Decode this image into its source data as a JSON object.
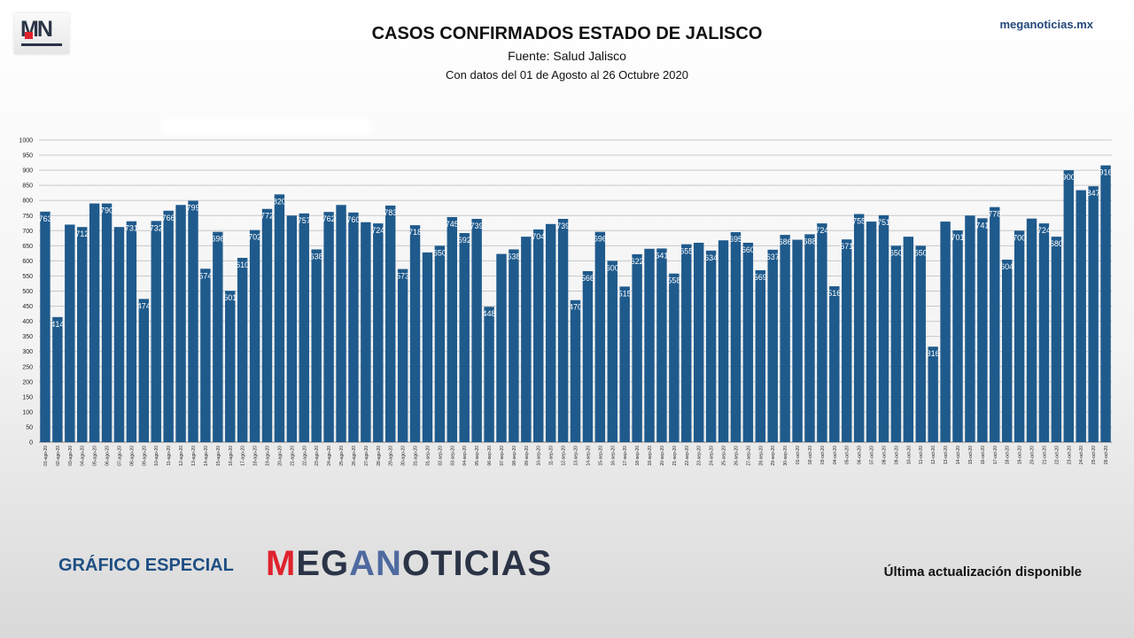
{
  "header": {
    "logo_text": "MN",
    "site": "meganoticias.mx"
  },
  "footer": {
    "left_text": "GRÁFICO ESPECIAL",
    "brand_text": "MEGANOTICIAS",
    "right_text": "Última actualización disponible"
  },
  "colors": {
    "bar": "#1f5a8c",
    "grid": "#c8c8c8",
    "brand_dark": "#2b3447",
    "brand_red": "#e0222e",
    "brand_blue": "#1e4f83"
  },
  "chart_data": {
    "type": "bar",
    "title": "CASOS CONFIRMADOS ESTADO DE JALISCO",
    "subtitle": "Fuente: Salud Jalisco",
    "date_range_text": "Con datos del 01 de Agosto al 26 Octubre 2020",
    "xlabel": "",
    "ylabel": "",
    "ylim": [
      0,
      1000
    ],
    "yticks": [
      0,
      50,
      100,
      150,
      200,
      250,
      300,
      350,
      400,
      450,
      500,
      550,
      600,
      650,
      700,
      750,
      800,
      850,
      900,
      950,
      1000
    ],
    "grid": true,
    "legend": "none",
    "categories": [
      "01-ago-20",
      "02-ago-20",
      "03-ago-20",
      "04-ago-20",
      "05-ago-20",
      "06-ago-20",
      "07-ago-20",
      "08-ago-20",
      "09-ago-20",
      "10-ago-20",
      "11-ago-20",
      "12-ago-20",
      "13-ago-20",
      "14-ago-20",
      "15-ago-20",
      "16-ago-20",
      "17-ago-20",
      "18-ago-20",
      "19-ago-20",
      "20-ago-20",
      "21-ago-20",
      "22-ago-20",
      "23-ago-20",
      "24-ago-20",
      "25-ago-20",
      "26-ago-20",
      "27-ago-20",
      "28-ago-20",
      "29-ago-20",
      "30-ago-20",
      "31-ago-20",
      "01-sep-20",
      "02-sep-20",
      "03-sep-20",
      "04-sep-20",
      "05-sep-20",
      "06-sep-20",
      "07-sep-20",
      "08-sep-20",
      "09-sep-20",
      "10-sep-20",
      "11-sep-20",
      "12-sep-20",
      "13-sep-20",
      "14-sep-20",
      "15-sep-20",
      "16-sep-20",
      "17-sep-20",
      "18-sep-20",
      "19-sep-20",
      "20-sep-20",
      "21-sep-20",
      "22-sep-20",
      "23-sep-20",
      "24-sep-20",
      "25-sep-20",
      "26-sep-20",
      "27-sep-20",
      "28-sep-20",
      "29-sep-20",
      "30-sep-20",
      "01-oct-20",
      "02-oct-20",
      "03-oct-20",
      "04-oct-20",
      "05-oct-20",
      "06-oct-20",
      "07-oct-20",
      "08-oct-20",
      "09-oct-20",
      "10-oct-20",
      "11-oct-20",
      "12-oct-20",
      "13-oct-20",
      "14-oct-20",
      "15-oct-20",
      "16-oct-20",
      "17-oct-20",
      "18-oct-20",
      "19-oct-20",
      "20-oct-20",
      "21-oct-20",
      "22-oct-20",
      "23-oct-20",
      "24-oct-20",
      "25-oct-20",
      "26-oct-20"
    ],
    "values": [
      763,
      414,
      720,
      712,
      790,
      790,
      712,
      731,
      474,
      732,
      766,
      785,
      799,
      574,
      696,
      501,
      610,
      702,
      772,
      820,
      750,
      757,
      638,
      762,
      785,
      760,
      728,
      724,
      783,
      573,
      718,
      628,
      650,
      745,
      692,
      739,
      448,
      623,
      638,
      680,
      704,
      722,
      739,
      470,
      566,
      696,
      600,
      515,
      622,
      640,
      641,
      558,
      655,
      660,
      634,
      668,
      695,
      660,
      569,
      637,
      686,
      670,
      688,
      724,
      516,
      671,
      755,
      730,
      751,
      650,
      680,
      650,
      316,
      730,
      701,
      750,
      741,
      778,
      604,
      700,
      740,
      724,
      680,
      900,
      834,
      847,
      916
    ],
    "data_labels": [
      "763",
      "414",
      "",
      "712",
      "",
      "790",
      "",
      "731",
      "474",
      "732",
      "766",
      "",
      "799",
      "574",
      "696",
      "501",
      "610",
      "702",
      "772",
      "820",
      "",
      "757",
      "638",
      "762",
      "",
      "760",
      "",
      "724",
      "783",
      "573",
      "718",
      "",
      "650",
      "745",
      "692",
      "739",
      "448",
      "",
      "638",
      "",
      "704",
      "",
      "739",
      "470",
      "566",
      "696",
      "600",
      "515",
      "622",
      "",
      "641",
      "558",
      "655",
      "",
      "634",
      "",
      "695",
      "660",
      "569",
      "637",
      "686",
      "",
      "688",
      "724",
      "516",
      "671",
      "755",
      "",
      "751",
      "650",
      "",
      "650",
      "316",
      "",
      "701",
      "",
      "741",
      "778",
      "604",
      "700",
      "",
      "724",
      "680",
      "900",
      "",
      "847",
      "916"
    ]
  }
}
